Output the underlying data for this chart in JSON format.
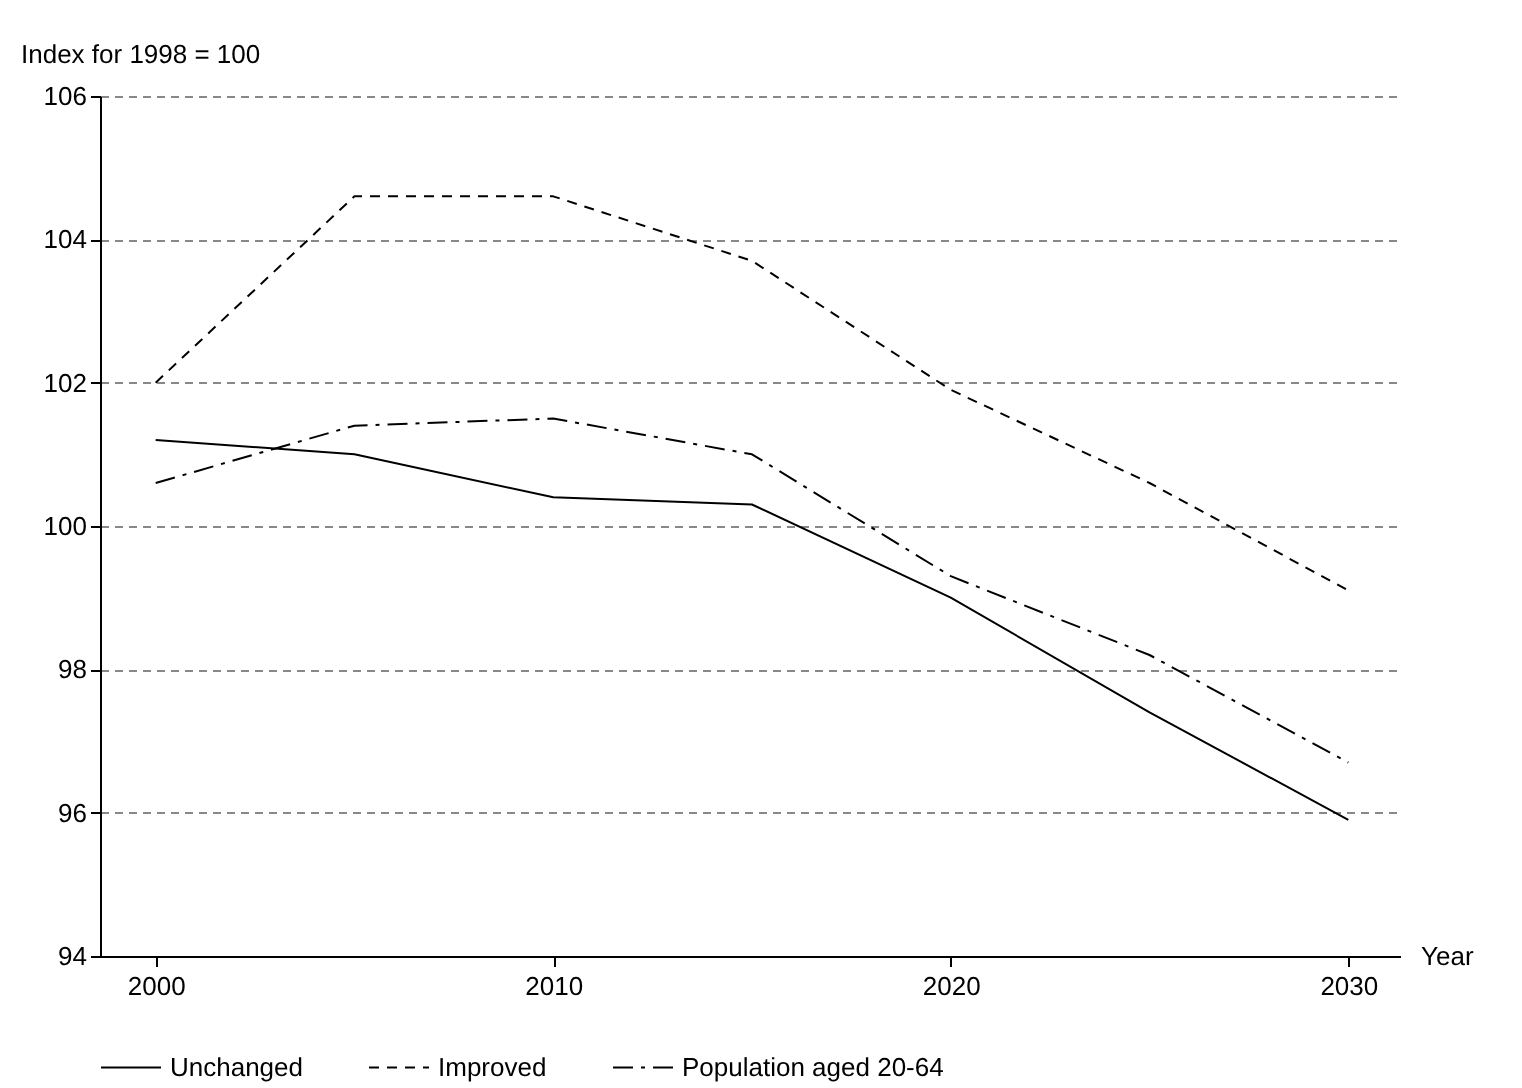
{
  "chart_data": {
    "type": "line",
    "xlabel": "Year",
    "ylabel": "Index for 1998 = 100",
    "x": [
      2000,
      2005,
      2010,
      2015,
      2020,
      2025,
      2030
    ],
    "series": [
      {
        "name": "Unchanged",
        "color": "#000000",
        "line_style": "solid",
        "values": [
          101.2,
          101.0,
          100.4,
          100.3,
          99.0,
          97.4,
          95.9
        ]
      },
      {
        "name": "Improved",
        "color": "#000000",
        "line_style": "dashed",
        "values": [
          102.0,
          104.6,
          104.6,
          103.7,
          101.9,
          100.6,
          99.1
        ]
      },
      {
        "name": "Population aged 20-64",
        "color": "#000000",
        "line_style": "dashdot",
        "values": [
          100.6,
          101.4,
          101.5,
          101.0,
          99.3,
          98.2,
          96.7
        ]
      }
    ],
    "xlim": [
      1998.6,
      2031.3
    ],
    "xticks": [
      2000,
      2010,
      2020,
      2030
    ],
    "ylim": [
      94,
      106
    ],
    "yticks": [
      94,
      96,
      98,
      100,
      102,
      104,
      106
    ],
    "grid": "y",
    "legend": "bottom"
  }
}
